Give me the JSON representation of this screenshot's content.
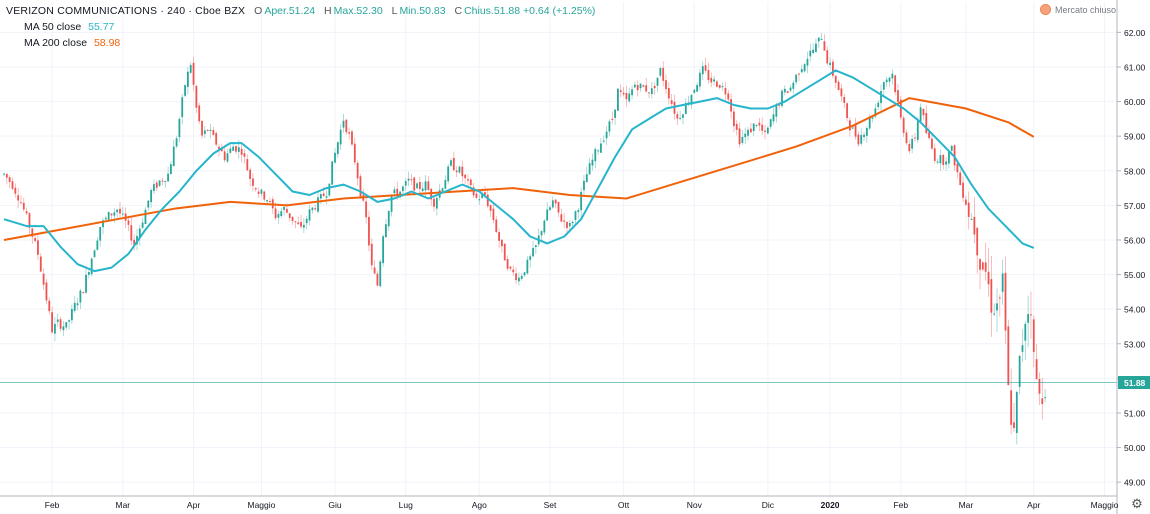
{
  "header": {
    "symbol": "VERIZON COMMUNICATIONS · 240 · Cboe BZX",
    "ohlc": [
      {
        "label": "O",
        "value": "Aper.51.24"
      },
      {
        "label": "H",
        "value": "Max.52.30"
      },
      {
        "label": "L",
        "value": "Min.50.83"
      },
      {
        "label": "C",
        "value": "Chius.51.88 +0.64 (+1.25%)"
      }
    ],
    "ma50_label": "MA 50 close",
    "ma50_value": "55.77",
    "ma200_label": "MA 200 close",
    "ma200_value": "58.98",
    "market_status": "Mercato chiuso"
  },
  "colors": {
    "up": "#26a69a",
    "down": "#ef5350",
    "ma50": "#26b5cc",
    "ma200": "#f0620a",
    "last_price_bg": "#26a69a"
  },
  "icons": {
    "settings": "gear-icon",
    "market": "market-status-dot-icon"
  },
  "chart_data": {
    "type": "candlestick",
    "interval": "240",
    "ylim": [
      48.6,
      62.3
    ],
    "y_ticks": [
      49.0,
      50.0,
      51.0,
      52.0,
      53.0,
      54.0,
      55.0,
      56.0,
      57.0,
      58.0,
      59.0,
      60.0,
      61.0,
      62.0
    ],
    "x_labels": [
      "Feb",
      "Mar",
      "Apr",
      "Maggio",
      "Giu",
      "Lug",
      "Ago",
      "Set",
      "Ott",
      "Nov",
      "Dic",
      "2020",
      "Feb",
      "Mar",
      "Apr",
      "Maggio"
    ],
    "last_price": 51.88,
    "last_price_label": "51.88",
    "grid": true,
    "price_path": [
      [
        0,
        57.9
      ],
      [
        3,
        57.6
      ],
      [
        6,
        57.1
      ],
      [
        9,
        56.4
      ],
      [
        12,
        55.6
      ],
      [
        15,
        54.3
      ],
      [
        17,
        53.4
      ],
      [
        19,
        53.6
      ],
      [
        22,
        53.5
      ],
      [
        25,
        54.1
      ],
      [
        28,
        54.6
      ],
      [
        31,
        55.5
      ],
      [
        34,
        56.4
      ],
      [
        37,
        56.7
      ],
      [
        40,
        56.9
      ],
      [
        43,
        56.5
      ],
      [
        46,
        55.9
      ],
      [
        49,
        56.6
      ],
      [
        52,
        57.4
      ],
      [
        55,
        57.7
      ],
      [
        58,
        57.9
      ],
      [
        61,
        59.0
      ],
      [
        64,
        60.5
      ],
      [
        66,
        61.1
      ],
      [
        68,
        59.8
      ],
      [
        70,
        59.0
      ],
      [
        72,
        59.2
      ],
      [
        75,
        58.8
      ],
      [
        78,
        58.4
      ],
      [
        81,
        58.7
      ],
      [
        84,
        58.6
      ],
      [
        87,
        57.8
      ],
      [
        90,
        57.4
      ],
      [
        93,
        57.2
      ],
      [
        96,
        56.7
      ],
      [
        99,
        56.9
      ],
      [
        102,
        56.6
      ],
      [
        105,
        56.3
      ],
      [
        108,
        56.8
      ],
      [
        111,
        57.1
      ],
      [
        114,
        57.4
      ],
      [
        117,
        58.5
      ],
      [
        120,
        59.5
      ],
      [
        122,
        59.0
      ],
      [
        124,
        58.3
      ],
      [
        126,
        57.4
      ],
      [
        128,
        56.6
      ],
      [
        130,
        55.2
      ],
      [
        132,
        54.7
      ],
      [
        134,
        56.2
      ],
      [
        137,
        57.3
      ],
      [
        140,
        57.4
      ],
      [
        143,
        57.7
      ],
      [
        146,
        57.5
      ],
      [
        149,
        57.6
      ],
      [
        152,
        57.1
      ],
      [
        155,
        57.6
      ],
      [
        158,
        58.2
      ],
      [
        161,
        58.0
      ],
      [
        164,
        57.6
      ],
      [
        167,
        57.2
      ],
      [
        170,
        57.3
      ],
      [
        173,
        56.6
      ],
      [
        176,
        55.7
      ],
      [
        179,
        55.1
      ],
      [
        182,
        54.9
      ],
      [
        185,
        55.3
      ],
      [
        188,
        55.8
      ],
      [
        191,
        56.6
      ],
      [
        194,
        57.1
      ],
      [
        197,
        56.6
      ],
      [
        200,
        56.4
      ],
      [
        203,
        57.0
      ],
      [
        206,
        57.9
      ],
      [
        209,
        58.5
      ],
      [
        212,
        59.0
      ],
      [
        215,
        59.5
      ],
      [
        217,
        60.3
      ],
      [
        220,
        60.0
      ],
      [
        223,
        60.5
      ],
      [
        226,
        60.4
      ],
      [
        229,
        60.3
      ],
      [
        232,
        60.9
      ],
      [
        235,
        60.2
      ],
      [
        238,
        59.5
      ],
      [
        241,
        59.9
      ],
      [
        244,
        60.4
      ],
      [
        247,
        60.9
      ],
      [
        250,
        60.6
      ],
      [
        253,
        60.5
      ],
      [
        256,
        60.2
      ],
      [
        258,
        59.4
      ],
      [
        260,
        58.9
      ],
      [
        263,
        59.1
      ],
      [
        266,
        59.4
      ],
      [
        269,
        59.0
      ],
      [
        272,
        59.6
      ],
      [
        275,
        60.2
      ],
      [
        278,
        60.4
      ],
      [
        281,
        60.9
      ],
      [
        284,
        61.3
      ],
      [
        287,
        61.6
      ],
      [
        289,
        61.9
      ],
      [
        291,
        61.2
      ],
      [
        294,
        60.6
      ],
      [
        296,
        60.1
      ],
      [
        299,
        59.3
      ],
      [
        302,
        58.9
      ],
      [
        305,
        59.3
      ],
      [
        308,
        59.8
      ],
      [
        311,
        60.6
      ],
      [
        314,
        60.8
      ],
      [
        317,
        59.5
      ],
      [
        320,
        58.6
      ],
      [
        322,
        59.0
      ],
      [
        324,
        59.9
      ],
      [
        326,
        59.1
      ],
      [
        329,
        58.4
      ],
      [
        332,
        58.3
      ],
      [
        335,
        58.6
      ],
      [
        338,
        57.6
      ],
      [
        340,
        57.1
      ],
      [
        343,
        56.4
      ],
      [
        345,
        55.5
      ],
      [
        347,
        55.1
      ],
      [
        349,
        54.2
      ],
      [
        351,
        54.1
      ],
      [
        353,
        54.7
      ],
      [
        355,
        51.6
      ],
      [
        357,
        50.3
      ],
      [
        359,
        52.4
      ],
      [
        361,
        53.8
      ],
      [
        363,
        54.2
      ],
      [
        364,
        52.5
      ],
      [
        366,
        51.4
      ],
      [
        368,
        51.88
      ]
    ],
    "ma50": [
      [
        0,
        56.6
      ],
      [
        8,
        56.4
      ],
      [
        14,
        56.4
      ],
      [
        20,
        55.8
      ],
      [
        26,
        55.3
      ],
      [
        32,
        55.1
      ],
      [
        38,
        55.2
      ],
      [
        44,
        55.6
      ],
      [
        50,
        56.3
      ],
      [
        56,
        56.9
      ],
      [
        62,
        57.4
      ],
      [
        68,
        58.0
      ],
      [
        74,
        58.5
      ],
      [
        80,
        58.8
      ],
      [
        84,
        58.8
      ],
      [
        90,
        58.4
      ],
      [
        96,
        57.9
      ],
      [
        102,
        57.4
      ],
      [
        108,
        57.3
      ],
      [
        114,
        57.5
      ],
      [
        120,
        57.6
      ],
      [
        126,
        57.4
      ],
      [
        132,
        57.1
      ],
      [
        138,
        57.2
      ],
      [
        144,
        57.4
      ],
      [
        150,
        57.2
      ],
      [
        156,
        57.4
      ],
      [
        162,
        57.6
      ],
      [
        168,
        57.4
      ],
      [
        174,
        57.0
      ],
      [
        180,
        56.6
      ],
      [
        186,
        56.1
      ],
      [
        192,
        55.9
      ],
      [
        198,
        56.1
      ],
      [
        204,
        56.6
      ],
      [
        210,
        57.5
      ],
      [
        216,
        58.4
      ],
      [
        222,
        59.2
      ],
      [
        228,
        59.5
      ],
      [
        234,
        59.8
      ],
      [
        240,
        59.9
      ],
      [
        246,
        60.0
      ],
      [
        252,
        60.1
      ],
      [
        258,
        59.9
      ],
      [
        264,
        59.8
      ],
      [
        270,
        59.8
      ],
      [
        276,
        60.0
      ],
      [
        282,
        60.3
      ],
      [
        288,
        60.6
      ],
      [
        294,
        60.9
      ],
      [
        300,
        60.7
      ],
      [
        306,
        60.4
      ],
      [
        312,
        60.1
      ],
      [
        318,
        59.8
      ],
      [
        324,
        59.4
      ],
      [
        330,
        58.9
      ],
      [
        336,
        58.4
      ],
      [
        342,
        57.6
      ],
      [
        348,
        56.9
      ],
      [
        354,
        56.4
      ],
      [
        360,
        55.9
      ],
      [
        364,
        55.77
      ]
    ],
    "ma200": [
      [
        0,
        56.0
      ],
      [
        20,
        56.3
      ],
      [
        40,
        56.6
      ],
      [
        60,
        56.9
      ],
      [
        80,
        57.1
      ],
      [
        100,
        57.0
      ],
      [
        120,
        57.2
      ],
      [
        140,
        57.3
      ],
      [
        160,
        57.4
      ],
      [
        180,
        57.5
      ],
      [
        200,
        57.3
      ],
      [
        220,
        57.2
      ],
      [
        240,
        57.7
      ],
      [
        260,
        58.2
      ],
      [
        280,
        58.7
      ],
      [
        300,
        59.3
      ],
      [
        320,
        60.1
      ],
      [
        340,
        59.8
      ],
      [
        355,
        59.4
      ],
      [
        364,
        58.98
      ]
    ],
    "x_label_index": [
      17,
      42,
      67,
      91,
      117,
      142,
      168,
      193,
      219,
      244,
      270,
      292,
      317,
      340,
      364,
      389
    ]
  }
}
